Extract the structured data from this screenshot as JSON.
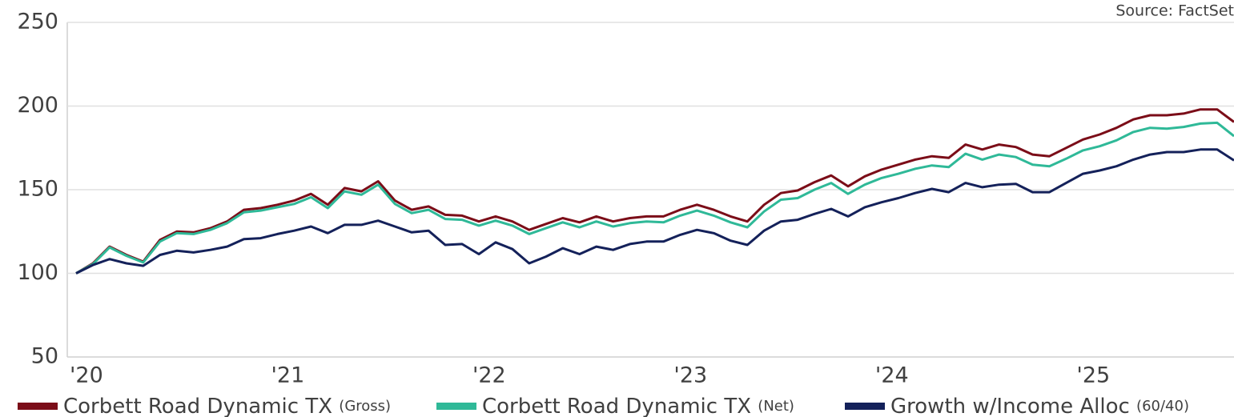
{
  "chart_data": {
    "type": "line",
    "source": "Source: FactSet",
    "categories": [
      "'20",
      null,
      null,
      null,
      null,
      null,
      null,
      null,
      null,
      null,
      null,
      null,
      "'21",
      null,
      null,
      null,
      null,
      null,
      null,
      null,
      null,
      null,
      null,
      null,
      "'22",
      null,
      null,
      null,
      null,
      null,
      null,
      null,
      null,
      null,
      null,
      null,
      "'23",
      null,
      null,
      null,
      null,
      null,
      null,
      null,
      null,
      null,
      null,
      null,
      "'24",
      null,
      null,
      null,
      null,
      null,
      null,
      null,
      null,
      null,
      null,
      null,
      "'25",
      null,
      null,
      null,
      null,
      null,
      null,
      null,
      null,
      null
    ],
    "series": [
      {
        "name": "Corbett Road Dynamic TX (Gross)",
        "color": "#7b0d18",
        "values": [
          100,
          106,
          116,
          111,
          107,
          120,
          125,
          124.5,
          127,
          131,
          138,
          139,
          141,
          143.5,
          147.5,
          141,
          151,
          149,
          155,
          143.5,
          138,
          140,
          135,
          134.5,
          131,
          134,
          131,
          126,
          129.5,
          133,
          130.5,
          134,
          131,
          133,
          134,
          134,
          138,
          141,
          138,
          134,
          131,
          141,
          148,
          149.5,
          154.5,
          158.5,
          152,
          158,
          162,
          165,
          168,
          170,
          169,
          177,
          174,
          177,
          175.5,
          171,
          170,
          175,
          180,
          183,
          187,
          192,
          194.5,
          194.5,
          195.5,
          198,
          198,
          190.5
        ]
      },
      {
        "name": "Corbett Road Dynamic TX (Net)",
        "color": "#2fb998",
        "values": [
          100,
          105.5,
          115.5,
          110.5,
          106.5,
          119,
          124,
          123.5,
          126,
          130,
          136.5,
          137.5,
          139.5,
          141.5,
          145.5,
          139,
          149,
          147,
          153,
          141.5,
          136,
          138,
          132.5,
          132,
          128.5,
          131.5,
          128.5,
          123.5,
          127,
          130.5,
          127.5,
          131,
          128,
          130,
          131,
          130.5,
          134.5,
          137.5,
          134.5,
          130.5,
          127.5,
          137,
          144,
          145,
          150,
          154,
          147.5,
          153,
          157,
          159.5,
          162.5,
          164.5,
          163.5,
          171.5,
          168,
          171,
          169.5,
          165,
          164,
          168.5,
          173.5,
          176,
          179.5,
          184.5,
          187,
          186.5,
          187.5,
          189.5,
          190,
          182
        ]
      },
      {
        "name": "Growth w/Income Alloc (60/40)",
        "color": "#14215a",
        "values": [
          100,
          105,
          108.5,
          106,
          104.5,
          111,
          113.5,
          112.5,
          114,
          116,
          120.5,
          121,
          123.5,
          125.5,
          128,
          124,
          129,
          129,
          131.5,
          128,
          124.5,
          125.5,
          117,
          117.5,
          111.5,
          118.5,
          114.5,
          106,
          110,
          115,
          111.5,
          116,
          114,
          117.5,
          119,
          119,
          123,
          126,
          124,
          119.5,
          117,
          125.5,
          131,
          132,
          135.5,
          138.5,
          134,
          139.5,
          142.5,
          145,
          148,
          150.5,
          148.5,
          154,
          151.5,
          153,
          153.5,
          148.5,
          148.5,
          154,
          159.5,
          161.5,
          164,
          168,
          171,
          172.5,
          172.5,
          174,
          174,
          167.5
        ]
      }
    ],
    "ylim": [
      50,
      250
    ],
    "yticks": [
      50,
      100,
      150,
      200,
      250
    ],
    "grid": true
  }
}
